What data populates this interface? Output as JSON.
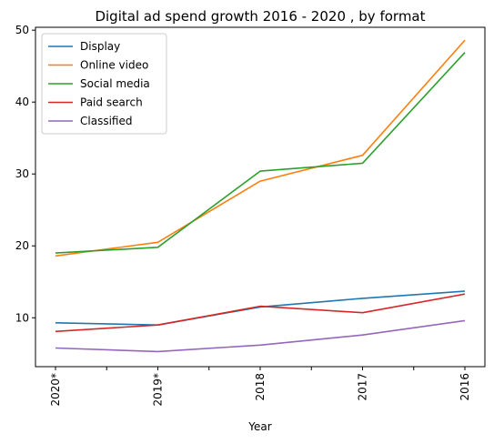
{
  "chart_data": {
    "type": "line",
    "title": "Digital ad spend growth 2016 - 2020 , by format",
    "xlabel": "Year",
    "ylabel": "",
    "categories": [
      "2020*",
      "2019*",
      "2018",
      "2017",
      "2016"
    ],
    "ylim": [
      3.2,
      50.4
    ],
    "yticks": [
      10,
      20,
      30,
      40,
      50
    ],
    "grid": false,
    "legend_position": "upper-left",
    "series": [
      {
        "name": "Display",
        "color": "#1f77b4",
        "values": [
          9.3,
          9.0,
          11.5,
          12.7,
          13.7
        ]
      },
      {
        "name": "Online video",
        "color": "#ff7f0e",
        "values": [
          18.6,
          20.5,
          29.0,
          32.6,
          48.6
        ]
      },
      {
        "name": "Social media",
        "color": "#2ca02c",
        "values": [
          19.0,
          19.8,
          30.4,
          31.5,
          46.9
        ]
      },
      {
        "name": "Paid search",
        "color": "#d62728",
        "values": [
          8.1,
          9.0,
          11.6,
          10.7,
          13.3
        ]
      },
      {
        "name": "Classified",
        "color": "#9467bd",
        "values": [
          5.8,
          5.3,
          6.2,
          7.6,
          9.6
        ]
      }
    ]
  }
}
